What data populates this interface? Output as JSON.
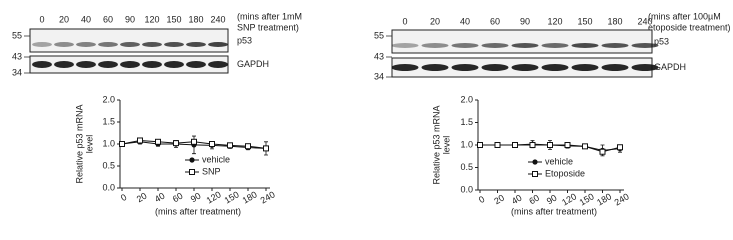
{
  "blots": [
    {
      "lanes": [
        "0",
        "20",
        "40",
        "60",
        "90",
        "120",
        "150",
        "180",
        "240"
      ],
      "annotation": [
        "(mins after 1mM",
        "SNP treatment)"
      ],
      "markers": [
        "55",
        "43",
        "34"
      ],
      "bands": [
        "p53",
        "GAPDH"
      ]
    },
    {
      "lanes": [
        "0",
        "20",
        "40",
        "60",
        "90",
        "120",
        "150",
        "180",
        "240"
      ],
      "annotation": [
        "(mins after 100µM",
        "etoposide treatment)"
      ],
      "markers": [
        "55",
        "43",
        "34"
      ],
      "bands": [
        "p53",
        "GAPDH"
      ]
    }
  ],
  "chart_data": [
    {
      "type": "line",
      "y_label": [
        "Relative p53 mRNA",
        "level"
      ],
      "x_label": "(mins after treatment)",
      "categories": [
        "0",
        "20",
        "40",
        "60",
        "90",
        "120",
        "150",
        "180",
        "240"
      ],
      "ylim": [
        0,
        2
      ],
      "yticks": [
        {
          "value": 0,
          "label": "0.0"
        },
        {
          "value": 0.5,
          "label": "0.5"
        },
        {
          "value": 1,
          "label": "1.0"
        },
        {
          "value": 1.5,
          "label": "1.5"
        },
        {
          "value": 2,
          "label": "2.0"
        }
      ],
      "series": [
        {
          "name": "vehicle",
          "color": "#111111",
          "marker": "circle",
          "values": [
            1.0,
            1.05,
            1.0,
            1.0,
            0.98,
            0.97,
            0.95,
            0.92,
            0.9
          ],
          "errors": [
            0.02,
            0.05,
            0.05,
            0.08,
            0.2,
            0.08,
            0.05,
            0.05,
            0.15
          ]
        },
        {
          "name": "SNP",
          "color": "#111111",
          "marker": "square",
          "values": [
            1.0,
            1.08,
            1.05,
            1.02,
            1.05,
            1.0,
            0.97,
            0.95,
            0.9
          ]
        }
      ]
    },
    {
      "type": "line",
      "y_label": [
        "Relative p53 mRNA",
        "level"
      ],
      "x_label": "(mins after treatment)",
      "categories": [
        "0",
        "20",
        "40",
        "60",
        "90",
        "120",
        "150",
        "180",
        "240"
      ],
      "ylim": [
        0,
        2
      ],
      "yticks": [
        {
          "value": 0,
          "label": "0.0"
        },
        {
          "value": 0.5,
          "label": "0.5"
        },
        {
          "value": 1,
          "label": "1.0"
        },
        {
          "value": 1.5,
          "label": "1.5"
        },
        {
          "value": 2,
          "label": "2.0"
        }
      ],
      "series": [
        {
          "name": "vehicle",
          "color": "#111111",
          "marker": "circle",
          "values": [
            1.0,
            1.0,
            1.0,
            1.02,
            1.0,
            0.98,
            0.97,
            0.88,
            0.92
          ],
          "errors": [
            0.05,
            0.05,
            0.05,
            0.08,
            0.1,
            0.05,
            0.03,
            0.12,
            0.08
          ]
        },
        {
          "name": "Etoposide",
          "color": "#111111",
          "marker": "square",
          "values": [
            1.0,
            1.0,
            1.0,
            1.0,
            1.0,
            1.0,
            0.97,
            0.85,
            0.95
          ]
        }
      ]
    }
  ]
}
